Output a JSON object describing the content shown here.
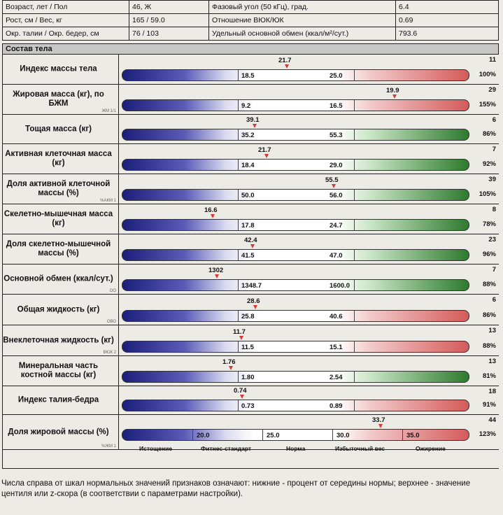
{
  "info": {
    "r1": [
      "Возраст, лет / Пол",
      "46, Ж",
      "Фазовый угол (50 кГц), град.",
      "6.4"
    ],
    "r2": [
      "Рост, см / Вес, кг",
      "165 / 59.0",
      "Отношение ВЮК/ЮК",
      "0.69"
    ],
    "r3": [
      "Окр. талии / Окр. бедер, см",
      "76 / 103",
      "Удельный основной обмен (ккал/м²/сут.)",
      "793.6"
    ]
  },
  "section_title": "Состав тела",
  "rows": [
    {
      "label": "Индекс массы тела",
      "code": "",
      "bar": "red",
      "lo": "18.5",
      "hi": "25.0",
      "value": "21.7",
      "right_top": "11",
      "right_bottom": "100%"
    },
    {
      "label": "Жировая масса (кг), по БЖМ",
      "code": "ЖМ 1/1",
      "bar": "red",
      "lo": "9.2",
      "hi": "16.5",
      "value": "19.9",
      "right_top": "29",
      "right_bottom": "155%"
    },
    {
      "label": "Тощая масса (кг)",
      "code": "",
      "bar": "green",
      "lo": "35.2",
      "hi": "55.3",
      "value": "39.1",
      "right_top": "6",
      "right_bottom": "86%"
    },
    {
      "label": "Активная клеточная масса (кг)",
      "code": "",
      "bar": "green",
      "lo": "18.4",
      "hi": "29.0",
      "value": "21.7",
      "right_top": "7",
      "right_bottom": "92%"
    },
    {
      "label": "Доля активной клеточной массы (%)",
      "code": "%АКМ 1",
      "bar": "green",
      "lo": "50.0",
      "hi": "56.0",
      "value": "55.5",
      "right_top": "39",
      "right_bottom": "105%"
    },
    {
      "label": "Скелетно-мышечная масса (кг)",
      "code": "",
      "bar": "green",
      "lo": "17.8",
      "hi": "24.7",
      "value": "16.6",
      "right_top": "8",
      "right_bottom": "78%"
    },
    {
      "label": "Доля скелетно-мышечной массы (%)",
      "code": "",
      "bar": "green",
      "lo": "41.5",
      "hi": "47.0",
      "value": "42.4",
      "right_top": "23",
      "right_bottom": "96%"
    },
    {
      "label": "Основной обмен (ккал/сут.)",
      "code": "ОО",
      "bar": "green",
      "lo": "1348.7",
      "hi": "1600.0",
      "value": "1302",
      "right_top": "7",
      "right_bottom": "88%"
    },
    {
      "label": "Общая жидкость (кг)",
      "code": "ОВО",
      "bar": "red",
      "lo": "25.8",
      "hi": "40.6",
      "value": "28.6",
      "right_top": "6",
      "right_bottom": "86%"
    },
    {
      "label": "Внеклеточная жидкость (кг)",
      "code": "ВЮК 2",
      "bar": "red",
      "lo": "11.5",
      "hi": "15.1",
      "value": "11.7",
      "right_top": "13",
      "right_bottom": "88%"
    },
    {
      "label": "Минеральная часть костной массы (кг)",
      "code": "",
      "bar": "green",
      "lo": "1.80",
      "hi": "2.54",
      "value": "1.76",
      "right_top": "13",
      "right_bottom": "81%"
    },
    {
      "label": "Индекс талия-бедра",
      "code": "",
      "bar": "red",
      "lo": "0.73",
      "hi": "0.89",
      "value": "0.74",
      "right_top": "18",
      "right_bottom": "91%"
    },
    {
      "label": "Доля жировой массы (%)",
      "code": "%ЖМ 1",
      "bar": "red",
      "ticks": [
        "20.0",
        "25.0",
        "30.0",
        "35.0"
      ],
      "value": "33.7",
      "right_top": "44",
      "right_bottom": "123%",
      "categories": [
        "Истощение",
        "Фитнес-стандарт",
        "Норма",
        "Избыточный вес",
        "Ожирение"
      ]
    }
  ],
  "footer": "Числа справа от шкал нормальных значений признаков означают: нижние - процент от середины нормы; верхнее - значение центиля или z-скора (в соответствии с параметрами настройки)."
}
